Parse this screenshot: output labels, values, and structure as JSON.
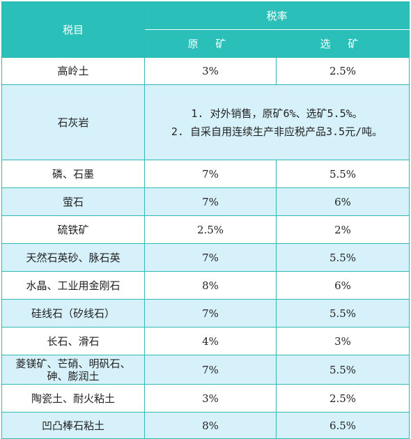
{
  "header": {
    "item_label": "税目",
    "rate_label": "税率",
    "raw_label": "原 矿",
    "processed_label": "选 矿"
  },
  "rows": [
    {
      "name": "高岭土",
      "raw": "3%",
      "processed": "2.5%"
    },
    {
      "name": "石灰岩",
      "note_lines": [
        "1. 对外销售，原矿6%、选矿5.5%。",
        "2. 自采自用连续生产非应税产品3.5元/吨。"
      ]
    },
    {
      "name": "磷、石墨",
      "raw": "7%",
      "processed": "5.5%"
    },
    {
      "name": "萤石",
      "raw": "7%",
      "processed": "6%"
    },
    {
      "name": "硫铁矿",
      "raw": "2.5%",
      "processed": "2%"
    },
    {
      "name": "天然石英砂、脉石英",
      "raw": "7%",
      "processed": "5.5%"
    },
    {
      "name": "水晶、工业用金刚石",
      "raw": "8%",
      "processed": "6%"
    },
    {
      "name": "硅线石（矽线石）",
      "raw": "7%",
      "processed": "5.5%"
    },
    {
      "name": "长石、滑石",
      "raw": "4%",
      "processed": "3%"
    },
    {
      "name_lines": [
        "菱镁矿、芒硝、明矾石、",
        "砷、膨润土"
      ],
      "raw": "7%",
      "processed": "5.5%"
    },
    {
      "name": "陶瓷土、耐火粘土",
      "raw": "3%",
      "processed": "2.5%"
    },
    {
      "name": "凹凸棒石粘土",
      "raw": "8%",
      "processed": "6.5%"
    }
  ],
  "colors": {
    "header_bg": "#2bbfb9",
    "row_stripe": "#d6f1fa",
    "border": "#31b8b3"
  }
}
